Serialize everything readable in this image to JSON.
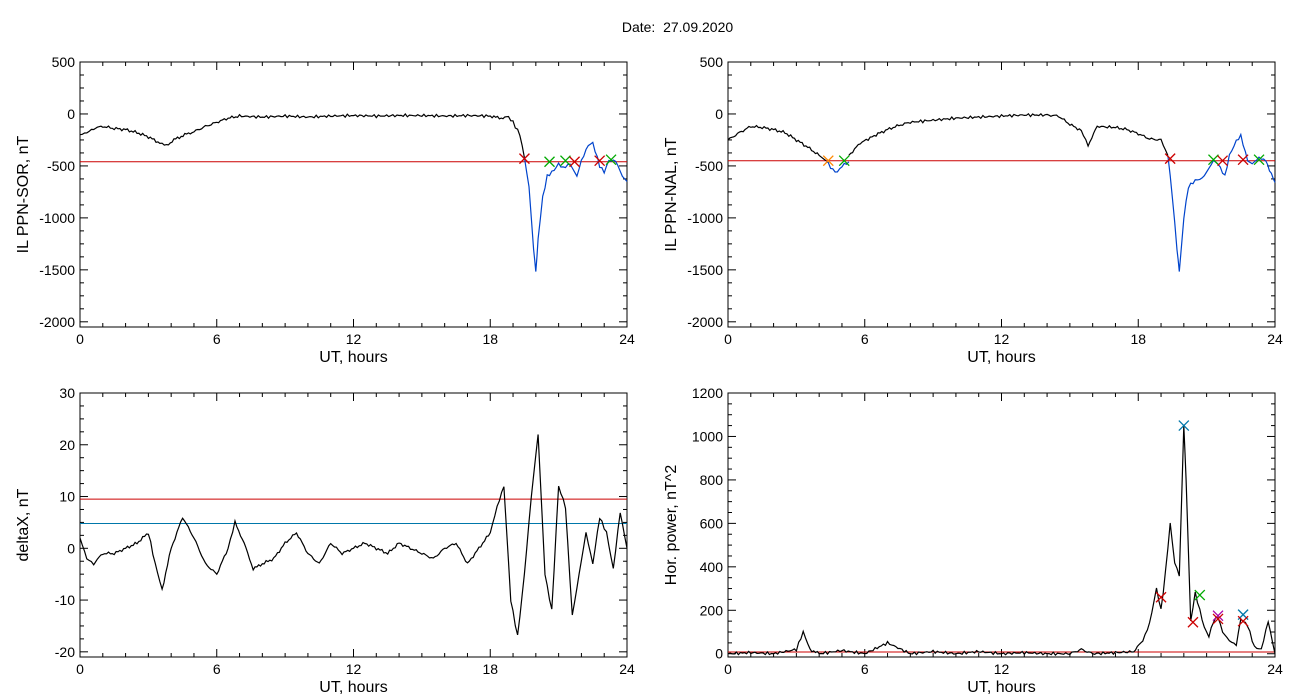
{
  "page": {
    "date_label": "Date:",
    "date_value": "27.09.2020"
  },
  "chart_data": [
    {
      "type": "line",
      "title": "",
      "xlabel": "UT, hours",
      "ylabel": "IL PPN-SOR, nT",
      "xlim": [
        0,
        24
      ],
      "ylim": [
        -2050,
        500
      ],
      "xticks": [
        0,
        6,
        12,
        18,
        24
      ],
      "yticks": [
        500,
        0,
        -500,
        -1000,
        -1500,
        -2000
      ],
      "threshold": -460,
      "series": [
        {
          "color": "#000000",
          "x": [
            0,
            0.3,
            0.6,
            1.0,
            1.5,
            2.0,
            2.5,
            3.0,
            3.5,
            3.8,
            4.2,
            4.6,
            5.0,
            5.5,
            6.0,
            6.5,
            7.0,
            8.0,
            9.0,
            10.0,
            11.0,
            12.0,
            13.0,
            14.0,
            15.0,
            16.0,
            17.0,
            18.0,
            18.4,
            18.8,
            19.0,
            19.3,
            19.5
          ],
          "y": [
            -200,
            -180,
            -140,
            -120,
            -140,
            -150,
            -180,
            -220,
            -280,
            -300,
            -240,
            -200,
            -170,
            -120,
            -80,
            -40,
            -20,
            -30,
            -20,
            -30,
            -20,
            -15,
            -20,
            -15,
            -15,
            -20,
            -15,
            -20,
            -40,
            -30,
            -80,
            -200,
            -420
          ]
        },
        {
          "color": "#0044cc",
          "x": [
            19.5,
            19.7,
            19.9,
            20.0,
            20.1,
            20.3,
            20.5,
            20.8,
            21.0,
            21.2,
            21.5,
            21.8,
            22.0,
            22.3,
            22.5,
            22.8,
            23.0,
            23.2,
            23.5,
            23.8,
            24.0
          ],
          "y": [
            -420,
            -700,
            -1300,
            -1520,
            -1200,
            -800,
            -600,
            -540,
            -480,
            -520,
            -480,
            -600,
            -450,
            -300,
            -280,
            -500,
            -560,
            -450,
            -450,
            -600,
            -650
          ]
        }
      ],
      "markers": [
        {
          "x": 19.5,
          "y": -430,
          "color": "#cc0000"
        },
        {
          "x": 20.6,
          "y": -460,
          "color": "#00aa00"
        },
        {
          "x": 21.3,
          "y": -450,
          "color": "#00aa00"
        },
        {
          "x": 21.7,
          "y": -460,
          "color": "#cc0000"
        },
        {
          "x": 22.8,
          "y": -450,
          "color": "#cc0000"
        },
        {
          "x": 23.3,
          "y": -440,
          "color": "#00aa00"
        }
      ]
    },
    {
      "type": "line",
      "title": "",
      "xlabel": "UT, hours",
      "ylabel": "IL PPN-NAL, nT",
      "xlim": [
        0,
        24
      ],
      "ylim": [
        -2050,
        500
      ],
      "xticks": [
        0,
        6,
        12,
        18,
        24
      ],
      "yticks": [
        500,
        0,
        -500,
        -1000,
        -1500,
        -2000
      ],
      "threshold": -450,
      "series": [
        {
          "color": "#000000",
          "x": [
            0,
            0.5,
            1.0,
            1.5,
            2.0,
            2.5,
            3.0,
            3.5,
            4.0,
            4.3
          ],
          "y": [
            -250,
            -180,
            -120,
            -130,
            -150,
            -180,
            -250,
            -320,
            -400,
            -450
          ]
        },
        {
          "color": "#0044cc",
          "x": [
            4.3,
            4.6,
            4.8,
            5.0,
            5.3
          ],
          "y": [
            -450,
            -540,
            -560,
            -500,
            -460
          ]
        },
        {
          "color": "#000000",
          "x": [
            5.3,
            5.8,
            6.5,
            7.0,
            7.5,
            8.0,
            9.0,
            10.0,
            11.0,
            12.0,
            13.0,
            14.0,
            14.5,
            15.0,
            15.5,
            15.8,
            16.2,
            17.0,
            17.5,
            18.0,
            18.5,
            19.0,
            19.3
          ],
          "y": [
            -400,
            -280,
            -200,
            -150,
            -110,
            -80,
            -60,
            -40,
            -30,
            -20,
            -10,
            -10,
            -20,
            -100,
            -160,
            -300,
            -120,
            -130,
            -150,
            -190,
            -240,
            -250,
            -400
          ]
        },
        {
          "color": "#0044cc",
          "x": [
            19.3,
            19.5,
            19.7,
            19.8,
            20.0,
            20.2,
            20.5,
            20.8,
            21.0,
            21.3,
            21.5,
            21.8,
            22.0,
            22.3,
            22.5,
            22.8,
            23.0,
            23.3,
            23.6,
            24.0
          ],
          "y": [
            -400,
            -800,
            -1300,
            -1520,
            -1000,
            -700,
            -640,
            -620,
            -560,
            -450,
            -480,
            -600,
            -400,
            -260,
            -210,
            -450,
            -480,
            -420,
            -450,
            -660
          ]
        }
      ],
      "markers": [
        {
          "x": 4.4,
          "y": -450,
          "color": "#ff8800"
        },
        {
          "x": 5.1,
          "y": -450,
          "color": "#00aa00"
        },
        {
          "x": 19.4,
          "y": -430,
          "color": "#cc0000"
        },
        {
          "x": 21.3,
          "y": -440,
          "color": "#00aa00"
        },
        {
          "x": 21.7,
          "y": -450,
          "color": "#cc0000"
        },
        {
          "x": 22.6,
          "y": -440,
          "color": "#cc0000"
        },
        {
          "x": 23.3,
          "y": -440,
          "color": "#00aa00"
        }
      ]
    },
    {
      "type": "line",
      "title": "",
      "xlabel": "UT, hours",
      "ylabel": "deltaX, nT",
      "xlim": [
        0,
        24
      ],
      "ylim": [
        -21,
        30
      ],
      "xticks": [
        0,
        6,
        12,
        18,
        24
      ],
      "yticks": [
        30,
        20,
        10,
        0,
        -10,
        -20
      ],
      "threshold_lines": [
        {
          "y": 9.5,
          "color": "#cc0000"
        },
        {
          "y": 4.8,
          "color": "#0077aa"
        }
      ],
      "series": [
        {
          "color": "#000000",
          "x": [
            0,
            0.3,
            0.6,
            1.0,
            1.5,
            2.0,
            2.5,
            3.0,
            3.3,
            3.6,
            4.0,
            4.5,
            5.0,
            5.5,
            6.0,
            6.5,
            6.8,
            7.2,
            7.6,
            8.0,
            8.5,
            9.0,
            9.5,
            10.0,
            10.5,
            11.0,
            11.5,
            12.0,
            12.5,
            13.0,
            13.5,
            14.0,
            14.5,
            15.0,
            15.5,
            16.0,
            16.5,
            17.0,
            17.5,
            18.0,
            18.3,
            18.6,
            18.9,
            19.2,
            19.5,
            19.8,
            20.1,
            20.4,
            20.7,
            21.0,
            21.3,
            21.6,
            21.9,
            22.2,
            22.5,
            22.8,
            23.1,
            23.4,
            23.7,
            24.0
          ],
          "y": [
            2,
            -2,
            -3,
            -1,
            -1,
            0,
            1,
            3,
            -3,
            -8,
            0,
            6,
            2,
            -3,
            -5,
            0,
            5,
            1,
            -4,
            -3,
            -2,
            1,
            3,
            -1,
            -3,
            1,
            -1,
            0,
            1,
            0,
            -1,
            1,
            0,
            -1,
            -2,
            0,
            1,
            -3,
            0,
            3,
            8,
            12,
            -10,
            -17,
            -5,
            10,
            22,
            -5,
            -12,
            12,
            8,
            -13,
            -5,
            3,
            -3,
            6,
            3,
            -4,
            7,
            0
          ]
        }
      ]
    },
    {
      "type": "line",
      "title": "",
      "xlabel": "UT, hours",
      "ylabel": "Hor. power, nT^2",
      "xlim": [
        0,
        24
      ],
      "ylim": [
        -15,
        1200
      ],
      "xticks": [
        0,
        6,
        12,
        18,
        24
      ],
      "yticks": [
        1200,
        1000,
        800,
        600,
        400,
        200,
        0
      ],
      "threshold": 8,
      "series": [
        {
          "color": "#000000",
          "x": [
            0,
            1.0,
            2.0,
            3.0,
            3.3,
            3.6,
            4.0,
            5.0,
            6.0,
            7.0,
            8.0,
            9.0,
            10.0,
            11.0,
            12.0,
            13.0,
            14.0,
            15.0,
            15.5,
            16.0,
            17.0,
            17.8,
            18.2,
            18.5,
            18.8,
            19.0,
            19.2,
            19.4,
            19.6,
            19.8,
            20.0,
            20.1,
            20.3,
            20.5,
            20.7,
            20.9,
            21.1,
            21.3,
            21.5,
            21.7,
            22.0,
            22.3,
            22.5,
            22.8,
            23.1,
            23.4,
            23.7,
            24.0
          ],
          "y": [
            0,
            5,
            0,
            20,
            100,
            20,
            0,
            15,
            0,
            50,
            0,
            10,
            0,
            10,
            0,
            5,
            0,
            0,
            20,
            0,
            5,
            10,
            60,
            140,
            300,
            200,
            380,
            600,
            420,
            360,
            1050,
            800,
            150,
            280,
            200,
            120,
            80,
            150,
            170,
            100,
            60,
            40,
            160,
            130,
            30,
            20,
            150,
            0
          ]
        }
      ],
      "markers": [
        {
          "x": 19.0,
          "y": 260,
          "color": "#cc0000"
        },
        {
          "x": 20.0,
          "y": 1050,
          "color": "#0077aa"
        },
        {
          "x": 20.4,
          "y": 145,
          "color": "#cc0000"
        },
        {
          "x": 20.7,
          "y": 270,
          "color": "#00aa00"
        },
        {
          "x": 21.5,
          "y": 175,
          "color": "#aa00aa"
        },
        {
          "x": 21.5,
          "y": 160,
          "color": "#cc0000"
        },
        {
          "x": 22.6,
          "y": 180,
          "color": "#0077aa"
        },
        {
          "x": 22.6,
          "y": 150,
          "color": "#cc0000"
        }
      ]
    }
  ]
}
